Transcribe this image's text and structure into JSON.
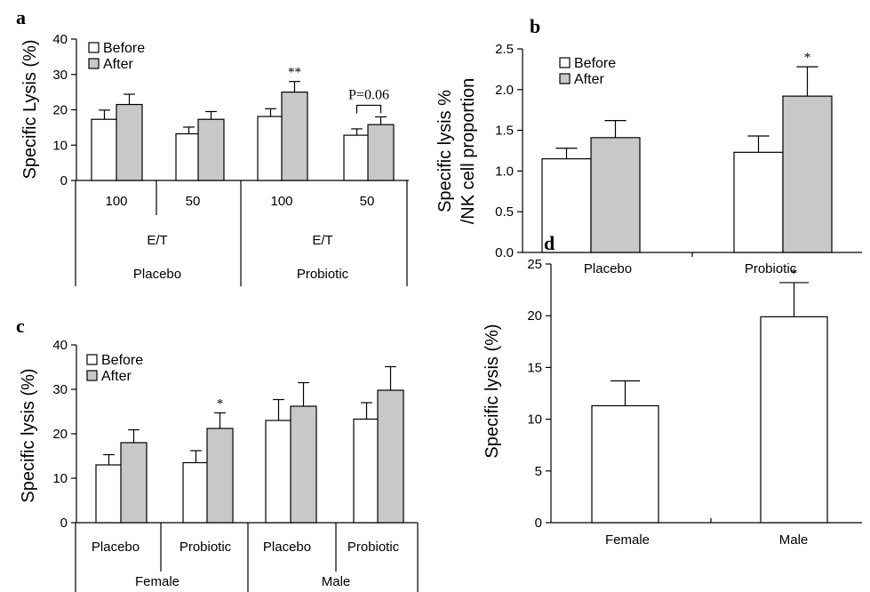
{
  "colors": {
    "before": "#ffffff",
    "after": "#c8c8c8",
    "stroke": "#000000"
  },
  "chart_data": [
    {
      "panel": "a",
      "type": "bar",
      "ylabel": "Specific Lysis (%)",
      "ylim": [
        0,
        40
      ],
      "yticks": [
        "0",
        "10",
        "20",
        "30",
        "40"
      ],
      "legend": [
        "Before",
        "After"
      ],
      "legend_placement": "top-left",
      "tiers": [
        [
          "100",
          "50",
          "100",
          "50"
        ],
        [
          "E/T",
          "E/T"
        ],
        [
          "Placebo",
          "Probiotic"
        ]
      ],
      "series": [
        {
          "name": "Before",
          "values": [
            17.3,
            13.2,
            18.1,
            12.8
          ],
          "errors": [
            2.6,
            1.9,
            2.2,
            1.8
          ]
        },
        {
          "name": "After",
          "values": [
            21.5,
            17.3,
            25.0,
            15.8
          ],
          "errors": [
            2.9,
            2.2,
            3.0,
            2.2
          ]
        }
      ],
      "significance": [
        "",
        "",
        "**",
        ""
      ],
      "p_annotation": "P=0.06"
    },
    {
      "panel": "b",
      "type": "bar",
      "ylabel": [
        "Specific lysis %",
        "/NK cell proportion"
      ],
      "ylim": [
        0,
        2.5
      ],
      "yticks": [
        "0.0",
        "0.5",
        "1.0",
        "1.5",
        "2.0",
        "2.5"
      ],
      "legend": [
        "Before",
        "After"
      ],
      "legend_placement": "top-left",
      "categories": [
        "Placebo",
        "Probiotic"
      ],
      "series": [
        {
          "name": "Before",
          "values": [
            1.15,
            1.23
          ],
          "errors": [
            0.13,
            0.2
          ]
        },
        {
          "name": "After",
          "values": [
            1.41,
            1.92
          ],
          "errors": [
            0.21,
            0.36
          ]
        }
      ],
      "significance": [
        "",
        "*"
      ]
    },
    {
      "panel": "c",
      "type": "bar",
      "ylabel": "Specific lysis (%)",
      "ylim": [
        0,
        40
      ],
      "yticks": [
        "0",
        "10",
        "20",
        "30",
        "40"
      ],
      "legend": [
        "Before",
        "After"
      ],
      "legend_placement": "top-left",
      "tiers": [
        [
          "Placebo",
          "Probiotic",
          "Placebo",
          "Probiotic"
        ],
        [
          "Female",
          "Male"
        ]
      ],
      "series": [
        {
          "name": "Before",
          "values": [
            13.0,
            13.5,
            23.0,
            23.3
          ],
          "errors": [
            2.3,
            2.7,
            4.7,
            3.7
          ]
        },
        {
          "name": "After",
          "values": [
            18.0,
            21.2,
            26.2,
            29.8
          ],
          "errors": [
            2.9,
            3.5,
            5.3,
            5.3
          ]
        }
      ],
      "significance": [
        "",
        "*",
        "",
        ""
      ]
    },
    {
      "panel": "d",
      "type": "bar",
      "ylabel": "Specific lysis (%)",
      "ylim": [
        0,
        25
      ],
      "yticks": [
        "0",
        "5",
        "10",
        "15",
        "20",
        "25"
      ],
      "categories": [
        "Female",
        "Male"
      ],
      "values": [
        11.3,
        19.9
      ],
      "errors": [
        2.4,
        3.3
      ],
      "significance": [
        "",
        "*"
      ]
    }
  ]
}
